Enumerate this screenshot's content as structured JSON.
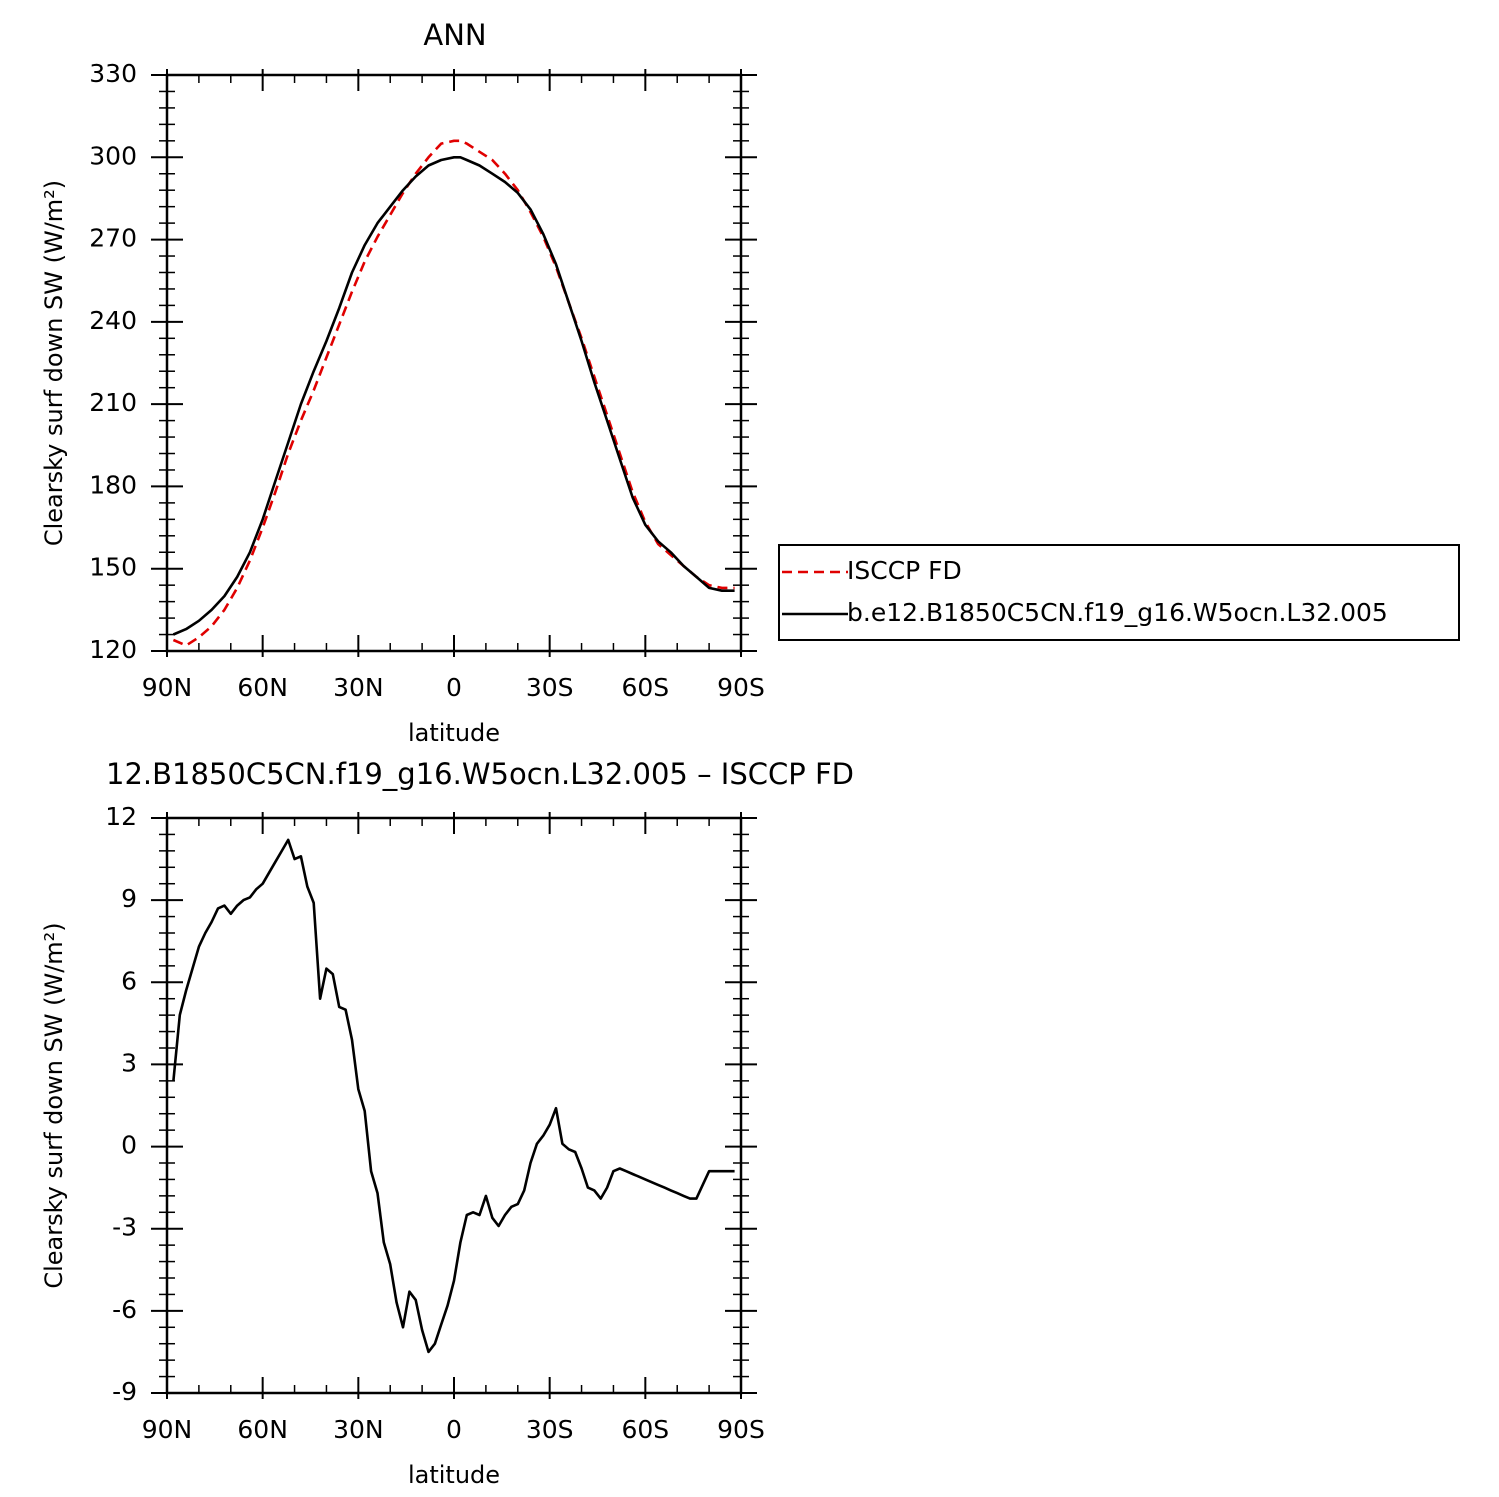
{
  "chart_data": [
    {
      "type": "line",
      "title": "ANN",
      "xlabel": "latitude",
      "ylabel": "Clearsky surf down SW (W/m²)",
      "xlim": [
        90,
        -90
      ],
      "ylim": [
        120,
        330
      ],
      "x_ticks": [
        {
          "value": 90,
          "label": "90N"
        },
        {
          "value": 60,
          "label": "60N"
        },
        {
          "value": 30,
          "label": "30N"
        },
        {
          "value": 0,
          "label": "0"
        },
        {
          "value": -30,
          "label": "30S"
        },
        {
          "value": -60,
          "label": "60S"
        },
        {
          "value": -90,
          "label": "90S"
        }
      ],
      "y_ticks": [
        120,
        150,
        180,
        210,
        240,
        270,
        300,
        330
      ],
      "legend": "right",
      "series": [
        {
          "name": "ISCCP FD",
          "color": "#e00000",
          "dash": true,
          "x": [
            88,
            84,
            80,
            76,
            72,
            68,
            64,
            60,
            56,
            52,
            48,
            44,
            40,
            36,
            32,
            28,
            24,
            20,
            16,
            12,
            8,
            4,
            0,
            -2,
            -4,
            -8,
            -12,
            -16,
            -20,
            -24,
            -28,
            -32,
            -36,
            -40,
            -44,
            -48,
            -52,
            -56,
            -60,
            -64,
            -68,
            -72,
            -76,
            -80,
            -84,
            -88
          ],
          "y": [
            124,
            122,
            125,
            129,
            135,
            143,
            153,
            165,
            178,
            192,
            204,
            215,
            227,
            239,
            251,
            262,
            271,
            279,
            287,
            294,
            300,
            305,
            306,
            306,
            305,
            302,
            299,
            294,
            288,
            280,
            271,
            260,
            247,
            234,
            220,
            206,
            192,
            178,
            167,
            159,
            155,
            151,
            147,
            144,
            143,
            143
          ]
        },
        {
          "name": "b.e12.B1850C5CN.f19_g16.W5ocn.L32.005",
          "color": "#000000",
          "dash": false,
          "x": [
            88,
            84,
            80,
            76,
            72,
            68,
            64,
            60,
            56,
            52,
            48,
            44,
            40,
            36,
            32,
            28,
            24,
            20,
            16,
            12,
            8,
            4,
            0,
            -2,
            -4,
            -8,
            -12,
            -16,
            -20,
            -24,
            -28,
            -32,
            -36,
            -40,
            -44,
            -48,
            -52,
            -56,
            -60,
            -64,
            -68,
            -72,
            -76,
            -80,
            -84,
            -88
          ],
          "y": [
            126,
            128,
            131,
            135,
            140,
            147,
            156,
            168,
            182,
            196,
            210,
            222,
            233,
            245,
            258,
            268,
            276,
            282,
            288,
            293,
            297,
            299,
            300,
            300,
            299,
            297,
            294,
            291,
            287,
            281,
            272,
            261,
            247,
            233,
            218,
            204,
            190,
            176,
            166,
            160,
            156,
            151,
            147,
            143,
            142,
            142
          ]
        }
      ]
    },
    {
      "type": "line",
      "title": "12.B1850C5CN.f19_g16.W5ocn.L32.005 – ISCCP FD",
      "xlabel": "latitude",
      "ylabel": "Clearsky surf down SW (W/m²)",
      "xlim": [
        90,
        -90
      ],
      "ylim": [
        -9,
        12
      ],
      "x_ticks": [
        {
          "value": 90,
          "label": "90N"
        },
        {
          "value": 60,
          "label": "60N"
        },
        {
          "value": 30,
          "label": "30N"
        },
        {
          "value": 0,
          "label": "0"
        },
        {
          "value": -30,
          "label": "30S"
        },
        {
          "value": -60,
          "label": "60S"
        },
        {
          "value": -90,
          "label": "90S"
        }
      ],
      "y_ticks": [
        -9,
        -6,
        -3,
        0,
        3,
        6,
        9,
        12
      ],
      "series": [
        {
          "color": "#000000",
          "dash": false,
          "x": [
            88,
            86,
            84,
            82,
            80,
            78,
            76,
            74,
            72,
            70,
            68,
            66,
            64,
            62,
            60,
            58,
            56,
            54,
            52,
            50,
            48,
            46,
            44,
            42,
            40,
            38,
            36,
            34,
            32,
            30,
            28,
            26,
            24,
            22,
            20,
            18,
            16,
            14,
            12,
            10,
            8,
            6,
            4,
            2,
            0,
            -2,
            -4,
            -6,
            -8,
            -10,
            -12,
            -14,
            -16,
            -18,
            -20,
            -22,
            -24,
            -26,
            -28,
            -30,
            -32,
            -34,
            -36,
            -38,
            -40,
            -42,
            -44,
            -46,
            -48,
            -50,
            -52,
            -54,
            -56,
            -58,
            -60,
            -62,
            -64,
            -66,
            -68,
            -70,
            -72,
            -74,
            -76,
            -78,
            -80,
            -82,
            -84,
            -86,
            -88
          ],
          "y": [
            2.4,
            4.8,
            5.7,
            6.5,
            7.3,
            7.8,
            8.2,
            8.7,
            8.8,
            8.5,
            8.8,
            9.0,
            9.1,
            9.4,
            9.6,
            10.0,
            10.4,
            10.8,
            11.2,
            10.5,
            10.6,
            9.5,
            8.9,
            5.4,
            6.5,
            6.3,
            5.1,
            5.0,
            3.9,
            2.1,
            1.3,
            -0.9,
            -1.7,
            -3.5,
            -4.3,
            -5.7,
            -6.6,
            -5.3,
            -5.6,
            -6.7,
            -7.5,
            -7.2,
            -6.5,
            -5.8,
            -4.9,
            -3.5,
            -2.5,
            -2.4,
            -2.5,
            -1.8,
            -2.6,
            -2.9,
            -2.5,
            -2.2,
            -2.1,
            -1.6,
            -0.6,
            0.1,
            0.4,
            0.8,
            1.4,
            0.1,
            -0.1,
            -0.2,
            -0.8,
            -1.5,
            -1.6,
            -1.9,
            -1.5,
            -0.9,
            -0.8,
            -0.9,
            -1.0,
            -1.1,
            -1.2,
            -1.3,
            -1.4,
            -1.5,
            -1.6,
            -1.7,
            -1.8,
            -1.9,
            -1.9,
            -1.4,
            -0.9,
            -0.9,
            -0.9,
            -0.9,
            -0.9
          ]
        }
      ]
    }
  ]
}
